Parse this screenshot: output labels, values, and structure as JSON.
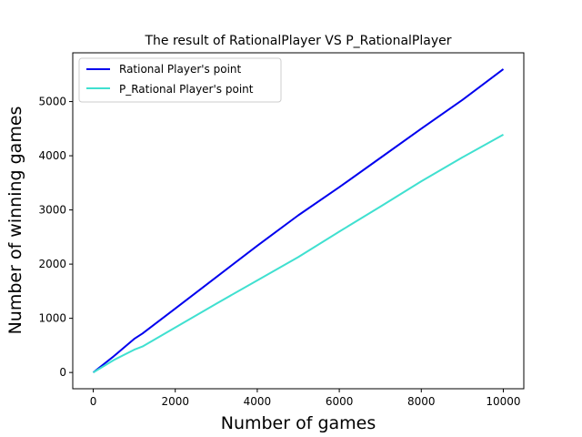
{
  "chart_data": {
    "type": "line",
    "title": "The result of RationalPlayer VS P_RationalPlayer",
    "xlabel": "Number of games",
    "ylabel": "Number of winning games",
    "xlim": [
      -500,
      10500
    ],
    "ylim": [
      -300,
      5900
    ],
    "xticks": [
      0,
      2000,
      4000,
      6000,
      8000,
      10000
    ],
    "yticks": [
      0,
      1000,
      2000,
      3000,
      4000,
      5000
    ],
    "grid": false,
    "legend_position": "upper-left",
    "series": [
      {
        "name": "Rational Player's point",
        "color": "#0000ee",
        "x": [
          0,
          500,
          1000,
          1200,
          2000,
          3000,
          4000,
          5000,
          6000,
          7000,
          8000,
          9000,
          10000
        ],
        "y": [
          0,
          300,
          620,
          720,
          1180,
          1760,
          2340,
          2900,
          3420,
          3960,
          4500,
          5030,
          5600
        ]
      },
      {
        "name": "P_Rational Player's point",
        "color": "#40e0d0",
        "x": [
          0,
          500,
          1000,
          1200,
          2000,
          3000,
          4000,
          5000,
          6000,
          7000,
          8000,
          9000,
          10000
        ],
        "y": [
          0,
          230,
          420,
          480,
          830,
          1270,
          1700,
          2130,
          2600,
          3060,
          3530,
          3970,
          4390
        ]
      }
    ]
  }
}
